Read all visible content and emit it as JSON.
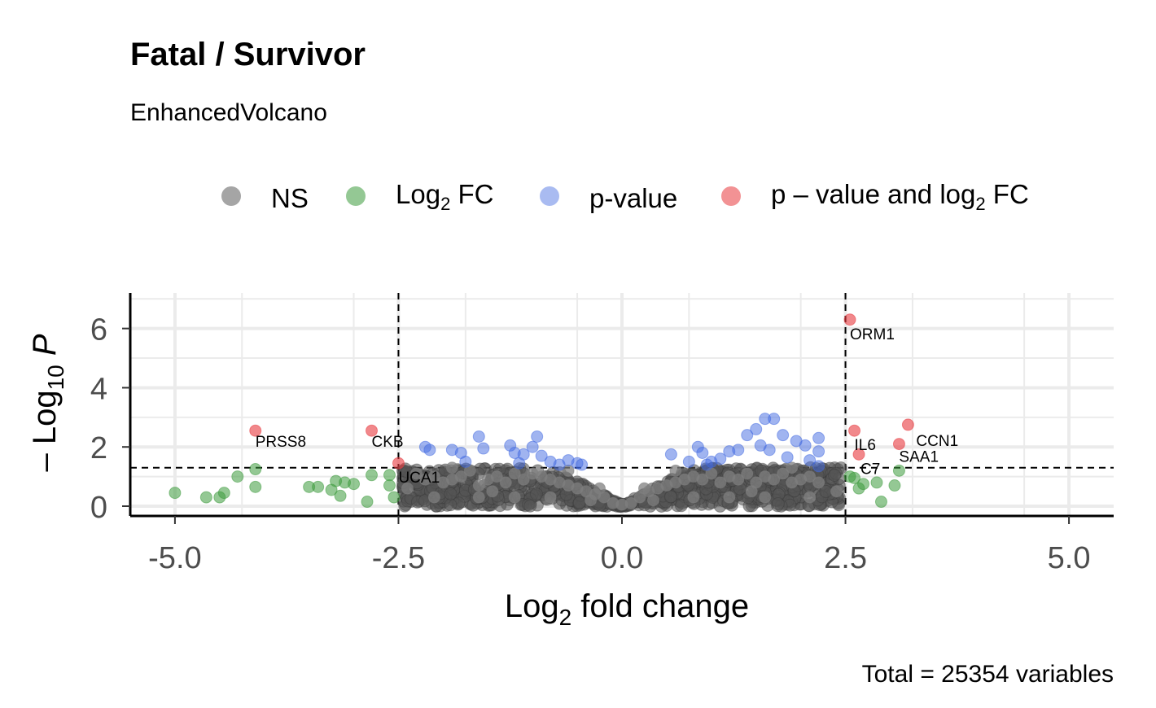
{
  "chart_data": {
    "type": "scatter",
    "title": "Fatal / Survivor",
    "subtitle": "EnhancedVolcano",
    "caption": "Total = 25354 variables",
    "xlabel": "Log2 fold change",
    "ylabel": "-Log10 P",
    "xlim": [
      -5.5,
      5.5
    ],
    "ylim": [
      0,
      7.2
    ],
    "xticks": [
      -5.0,
      -2.5,
      0.0,
      2.5,
      5.0
    ],
    "xtick_labels": [
      "-5.0",
      "-2.5",
      "0.0",
      "2.5",
      "5.0"
    ],
    "yticks": [
      0,
      2,
      4,
      6
    ],
    "ytick_labels": [
      "0",
      "2",
      "4",
      "6"
    ],
    "grid": true,
    "legend_position": "top",
    "thresholds": {
      "log2fc": [
        -2.5,
        2.5
      ],
      "neg_log10_p": 1.3
    },
    "series": [
      {
        "name": "NS",
        "color": "#7f7f7f",
        "points": [
          [
            -2.3,
            1.1
          ],
          [
            -2.2,
            0.9
          ],
          [
            -2.1,
            1.0
          ],
          [
            -2.0,
            0.8
          ],
          [
            -1.9,
            0.9
          ],
          [
            -1.8,
            1.0
          ],
          [
            -1.7,
            1.2
          ],
          [
            -1.6,
            0.7
          ],
          [
            -1.5,
            0.9
          ],
          [
            -1.4,
            1.0
          ],
          [
            -1.3,
            0.8
          ],
          [
            -1.2,
            1.1
          ],
          [
            -1.1,
            0.9
          ],
          [
            -1.0,
            1.1
          ],
          [
            -0.9,
            1.0
          ],
          [
            -0.8,
            0.9
          ],
          [
            -0.7,
            0.8
          ],
          [
            -0.6,
            0.7
          ],
          [
            -0.5,
            0.6
          ],
          [
            -0.4,
            0.5
          ],
          [
            -0.3,
            0.4
          ],
          [
            -0.2,
            0.3
          ],
          [
            -0.1,
            0.1
          ],
          [
            0.0,
            0.05
          ],
          [
            0.1,
            0.1
          ],
          [
            0.2,
            0.3
          ],
          [
            0.3,
            0.5
          ],
          [
            0.4,
            0.6
          ],
          [
            0.5,
            0.7
          ],
          [
            0.6,
            0.8
          ],
          [
            0.7,
            0.9
          ],
          [
            0.8,
            1.0
          ],
          [
            0.9,
            0.9
          ],
          [
            1.0,
            1.1
          ],
          [
            1.1,
            0.8
          ],
          [
            1.2,
            1.0
          ],
          [
            1.3,
            0.9
          ],
          [
            1.4,
            1.1
          ],
          [
            1.5,
            0.8
          ],
          [
            1.6,
            1.0
          ],
          [
            1.7,
            0.9
          ],
          [
            1.8,
            1.1
          ],
          [
            1.9,
            0.8
          ],
          [
            2.0,
            0.9
          ],
          [
            2.1,
            1.0
          ],
          [
            2.2,
            0.8
          ],
          [
            2.4,
            0.5
          ],
          [
            -2.4,
            0.6
          ],
          [
            -1.6,
            0.3
          ],
          [
            -1.2,
            0.3
          ],
          [
            -0.8,
            0.3
          ],
          [
            0.8,
            0.3
          ],
          [
            1.2,
            0.3
          ],
          [
            1.6,
            0.3
          ],
          [
            -2.1,
            0.3
          ],
          [
            2.1,
            0.3
          ],
          [
            -0.6,
            1.2
          ],
          [
            0.6,
            1.2
          ],
          [
            1.9,
            1.3
          ],
          [
            -1.9,
            1.3
          ],
          [
            -0.35,
            0.2
          ],
          [
            0.35,
            0.2
          ],
          [
            -0.25,
            0.6
          ],
          [
            0.25,
            0.6
          ],
          [
            1.45,
            0.5
          ],
          [
            -1.45,
            0.5
          ]
        ]
      },
      {
        "name": "Log2 FC",
        "color": "#3c9a3c",
        "points": [
          [
            -5.0,
            0.45
          ],
          [
            -4.65,
            0.3
          ],
          [
            -4.5,
            0.3
          ],
          [
            -4.45,
            0.45
          ],
          [
            -4.3,
            1.0
          ],
          [
            -4.1,
            1.25
          ],
          [
            -4.1,
            0.65
          ],
          [
            -3.5,
            0.65
          ],
          [
            -3.4,
            0.65
          ],
          [
            -3.25,
            0.55
          ],
          [
            -3.2,
            0.85
          ],
          [
            -3.15,
            0.35
          ],
          [
            -3.1,
            0.8
          ],
          [
            -3.0,
            0.75
          ],
          [
            -2.85,
            0.15
          ],
          [
            -2.8,
            1.05
          ],
          [
            -2.6,
            1.05
          ],
          [
            -2.6,
            0.7
          ],
          [
            -2.55,
            0.3
          ],
          [
            2.55,
            1.0
          ],
          [
            2.6,
            0.95
          ],
          [
            2.65,
            0.6
          ],
          [
            2.7,
            0.75
          ],
          [
            2.85,
            0.8
          ],
          [
            2.9,
            0.15
          ],
          [
            3.05,
            0.7
          ],
          [
            3.1,
            1.2
          ]
        ]
      },
      {
        "name": "p-value",
        "color": "#4169e1",
        "points": [
          [
            -2.2,
            2.0
          ],
          [
            -2.15,
            1.9
          ],
          [
            -1.9,
            1.9
          ],
          [
            -1.8,
            1.8
          ],
          [
            -1.75,
            1.5
          ],
          [
            -1.6,
            2.35
          ],
          [
            -1.55,
            1.95
          ],
          [
            -1.25,
            2.05
          ],
          [
            -1.2,
            1.8
          ],
          [
            -1.1,
            1.75
          ],
          [
            -1.0,
            2.0
          ],
          [
            -0.95,
            2.35
          ],
          [
            -0.9,
            1.7
          ],
          [
            -0.8,
            1.5
          ],
          [
            -0.7,
            1.4
          ],
          [
            -0.5,
            1.45
          ],
          [
            -0.45,
            1.4
          ],
          [
            0.55,
            1.75
          ],
          [
            0.75,
            1.5
          ],
          [
            0.85,
            2.0
          ],
          [
            0.9,
            1.8
          ],
          [
            1.1,
            1.6
          ],
          [
            1.2,
            1.85
          ],
          [
            1.3,
            1.9
          ],
          [
            1.4,
            2.4
          ],
          [
            1.5,
            2.6
          ],
          [
            1.6,
            2.95
          ],
          [
            1.7,
            2.95
          ],
          [
            1.55,
            2.05
          ],
          [
            1.65,
            1.9
          ],
          [
            1.8,
            2.4
          ],
          [
            1.85,
            1.65
          ],
          [
            1.95,
            2.2
          ],
          [
            2.05,
            2.05
          ],
          [
            2.1,
            1.55
          ],
          [
            2.2,
            2.3
          ],
          [
            2.2,
            1.85
          ],
          [
            2.2,
            1.35
          ],
          [
            -1.15,
            1.45
          ],
          [
            0.95,
            1.4
          ],
          [
            1.0,
            1.5
          ],
          [
            -0.6,
            1.55
          ]
        ]
      },
      {
        "name": "p – value and log2 FC",
        "color": "#e8383d",
        "points": [
          [
            -4.1,
            2.55
          ],
          [
            -2.8,
            2.55
          ],
          [
            -2.5,
            1.45
          ],
          [
            2.55,
            6.3
          ],
          [
            2.6,
            2.55
          ],
          [
            2.65,
            1.75
          ],
          [
            3.1,
            2.1
          ],
          [
            3.2,
            2.75
          ]
        ]
      }
    ],
    "labeled_points": [
      {
        "label": "PRSS8",
        "x": -4.1,
        "y": 2.55
      },
      {
        "label": "CKB",
        "x": -2.8,
        "y": 2.55
      },
      {
        "label": "UCA1",
        "x": -2.5,
        "y": 1.45
      },
      {
        "label": "ORM1",
        "x": 2.55,
        "y": 6.3
      },
      {
        "label": "IL6",
        "x": 2.6,
        "y": 2.55
      },
      {
        "label": "CCN1",
        "x": 3.2,
        "y": 2.75
      },
      {
        "label": "SAA1",
        "x": 3.1,
        "y": 2.1
      },
      {
        "label": "C7",
        "x": 2.65,
        "y": 1.75
      }
    ]
  }
}
